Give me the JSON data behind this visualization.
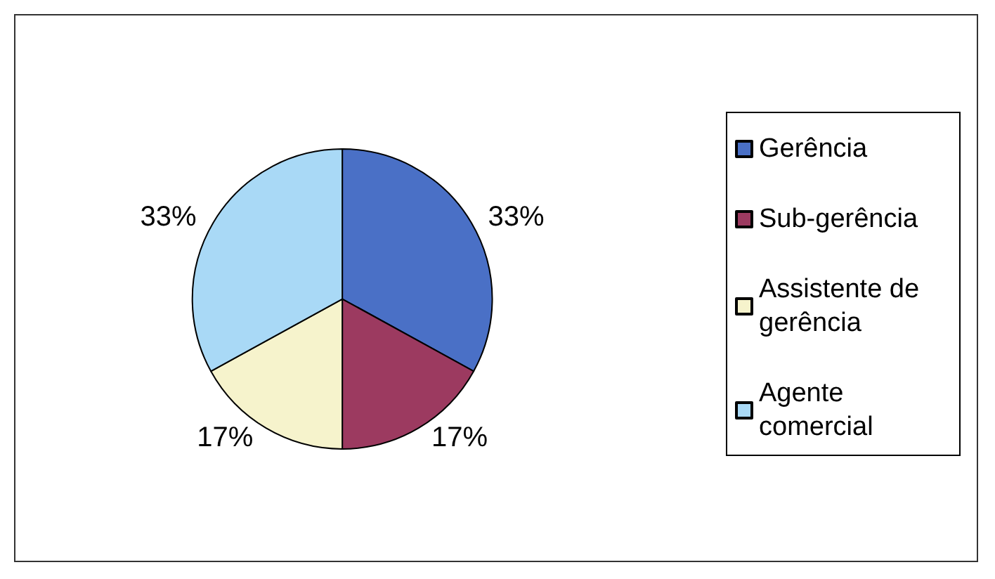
{
  "chart_data": {
    "type": "pie",
    "categories": [
      "Gerência",
      "Sub-gerência",
      "Assistente de gerência",
      "Agente comercial"
    ],
    "values": [
      33,
      17,
      17,
      33
    ],
    "colors": [
      "#4a70c6",
      "#9c3a60",
      "#f6f3cc",
      "#a9d9f6"
    ],
    "value_labels": [
      "33%",
      "17%",
      "17%",
      "33%"
    ],
    "legend": "right"
  }
}
